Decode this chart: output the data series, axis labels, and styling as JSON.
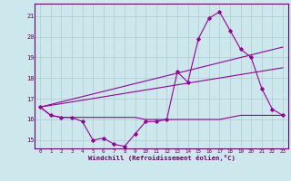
{
  "xlabel": "Windchill (Refroidissement éolien,°C)",
  "bg_color": "#cce8ec",
  "grid_color": "#aacccc",
  "line_color": "#990099",
  "x_ticks": [
    0,
    1,
    2,
    3,
    4,
    5,
    6,
    7,
    8,
    9,
    10,
    11,
    12,
    13,
    14,
    15,
    16,
    17,
    18,
    19,
    20,
    21,
    22,
    23
  ],
  "ylim": [
    14.6,
    21.6
  ],
  "y_ticks": [
    15,
    16,
    17,
    18,
    19,
    20,
    21
  ],
  "series1": [
    16.6,
    16.2,
    16.1,
    16.1,
    15.9,
    15.0,
    15.1,
    14.8,
    14.7,
    15.3,
    15.9,
    15.9,
    16.0,
    18.3,
    17.8,
    19.9,
    20.9,
    21.2,
    20.3,
    19.4,
    19.0,
    17.5,
    16.5,
    16.2
  ],
  "series2": [
    16.6,
    16.2,
    16.1,
    16.1,
    16.1,
    16.1,
    16.1,
    16.1,
    16.1,
    16.1,
    16.0,
    16.0,
    16.0,
    16.0,
    16.0,
    16.0,
    16.0,
    16.0,
    16.1,
    16.2,
    16.2,
    16.2,
    16.2,
    16.2
  ],
  "series3_x": [
    0,
    23
  ],
  "series3_y": [
    16.6,
    19.5
  ],
  "series4_x": [
    0,
    23
  ],
  "series4_y": [
    16.6,
    18.5
  ]
}
